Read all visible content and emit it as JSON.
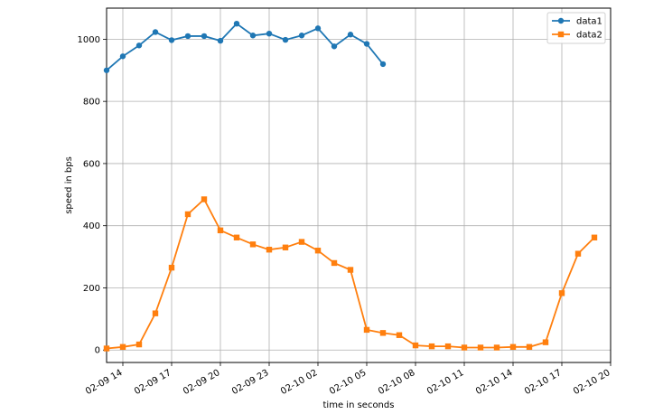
{
  "chart_data": {
    "type": "line",
    "xlabel": "time in seconds",
    "ylabel": "speed in bps",
    "x_start": "2023-02-09 13:00",
    "x_step_hours": 1,
    "xlim": [
      "2023-02-09 13:00",
      "2023-02-10 20:00"
    ],
    "ylim": [
      -40,
      1100
    ],
    "xticks": [
      "02-09 14",
      "02-09 17",
      "02-09 20",
      "02-09 23",
      "02-10 02",
      "02-10 05",
      "02-10 08",
      "02-10 11",
      "02-10 14",
      "02-10 17",
      "02-10 20"
    ],
    "yticks": [
      0,
      200,
      400,
      600,
      800,
      1000
    ],
    "grid": true,
    "legend_position": "top-right",
    "series": [
      {
        "name": "data1",
        "color": "#1f77b4",
        "marker": "circle",
        "x": [
          "2023-02-09 13:00",
          "2023-02-09 14:00",
          "2023-02-09 15:00",
          "2023-02-09 16:00",
          "2023-02-09 17:00",
          "2023-02-09 18:00",
          "2023-02-09 19:00",
          "2023-02-09 20:00",
          "2023-02-09 21:00",
          "2023-02-09 22:00",
          "2023-02-09 23:00",
          "2023-02-10 00:00",
          "2023-02-10 01:00",
          "2023-02-10 02:00",
          "2023-02-10 03:00",
          "2023-02-10 04:00",
          "2023-02-10 05:00",
          "2023-02-10 06:00"
        ],
        "values": [
          900,
          945,
          980,
          1023,
          997,
          1010,
          1010,
          995,
          1050,
          1012,
          1018,
          998,
          1012,
          1035,
          977,
          1015,
          985,
          920
        ]
      },
      {
        "name": "data2",
        "color": "#ff7f0e",
        "marker": "square",
        "x": [
          "2023-02-09 13:00",
          "2023-02-09 14:00",
          "2023-02-09 15:00",
          "2023-02-09 16:00",
          "2023-02-09 17:00",
          "2023-02-09 18:00",
          "2023-02-09 19:00",
          "2023-02-09 20:00",
          "2023-02-09 21:00",
          "2023-02-09 22:00",
          "2023-02-09 23:00",
          "2023-02-10 00:00",
          "2023-02-10 01:00",
          "2023-02-10 02:00",
          "2023-02-10 03:00",
          "2023-02-10 04:00",
          "2023-02-10 05:00",
          "2023-02-10 06:00",
          "2023-02-10 07:00",
          "2023-02-10 08:00",
          "2023-02-10 09:00",
          "2023-02-10 10:00",
          "2023-02-10 11:00",
          "2023-02-10 12:00",
          "2023-02-10 13:00",
          "2023-02-10 14:00",
          "2023-02-10 15:00",
          "2023-02-10 16:00",
          "2023-02-10 17:00",
          "2023-02-10 18:00",
          "2023-02-10 19:00"
        ],
        "values": [
          5,
          10,
          18,
          118,
          265,
          437,
          485,
          385,
          362,
          340,
          323,
          330,
          348,
          320,
          280,
          258,
          65,
          55,
          48,
          15,
          12,
          12,
          8,
          8,
          8,
          10,
          10,
          25,
          183,
          310,
          362
        ]
      }
    ]
  }
}
